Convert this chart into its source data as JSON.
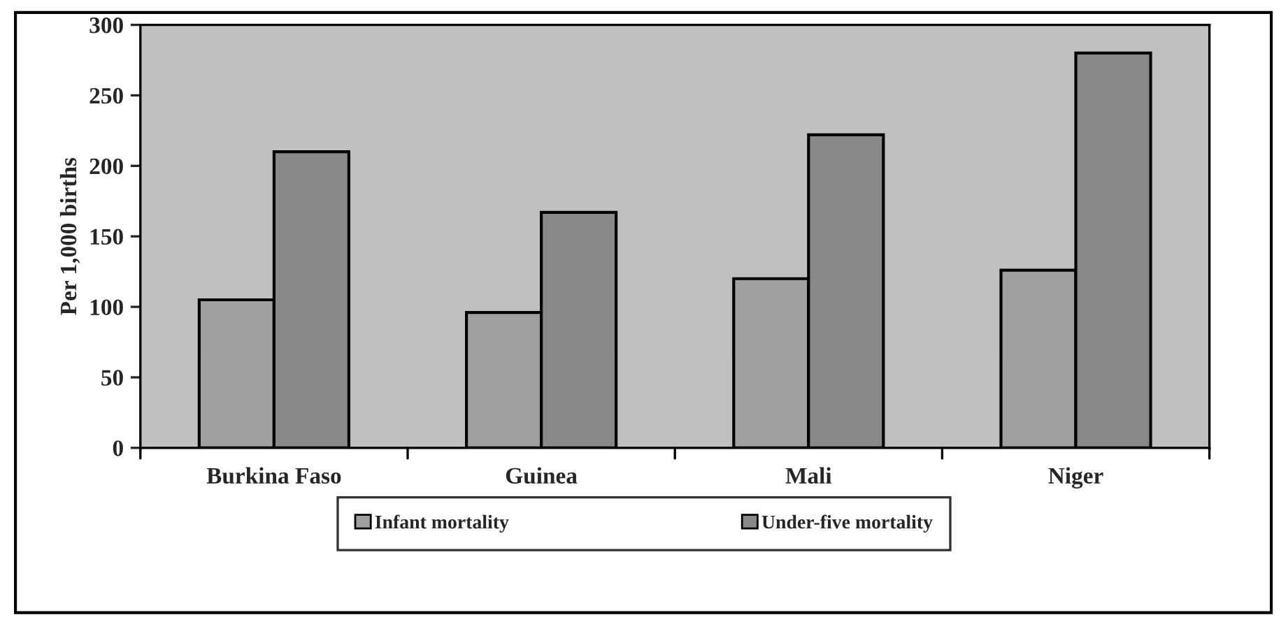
{
  "chart_data": {
    "type": "bar",
    "ylabel": "Per 1,000 births",
    "categories": [
      "Burkina Faso",
      "Guinea",
      "Mali",
      "Niger"
    ],
    "series": [
      {
        "name": "Infant mortality",
        "color": "#a0a0a0",
        "values": [
          105,
          96,
          120,
          126
        ]
      },
      {
        "name": "Under-five mortality",
        "color": "#888888",
        "values": [
          210,
          167,
          222,
          280
        ]
      }
    ],
    "ylim": [
      0,
      300
    ],
    "yticks": [
      0,
      50,
      100,
      150,
      200,
      250,
      300
    ],
    "grid": false,
    "legend": "bottom"
  }
}
